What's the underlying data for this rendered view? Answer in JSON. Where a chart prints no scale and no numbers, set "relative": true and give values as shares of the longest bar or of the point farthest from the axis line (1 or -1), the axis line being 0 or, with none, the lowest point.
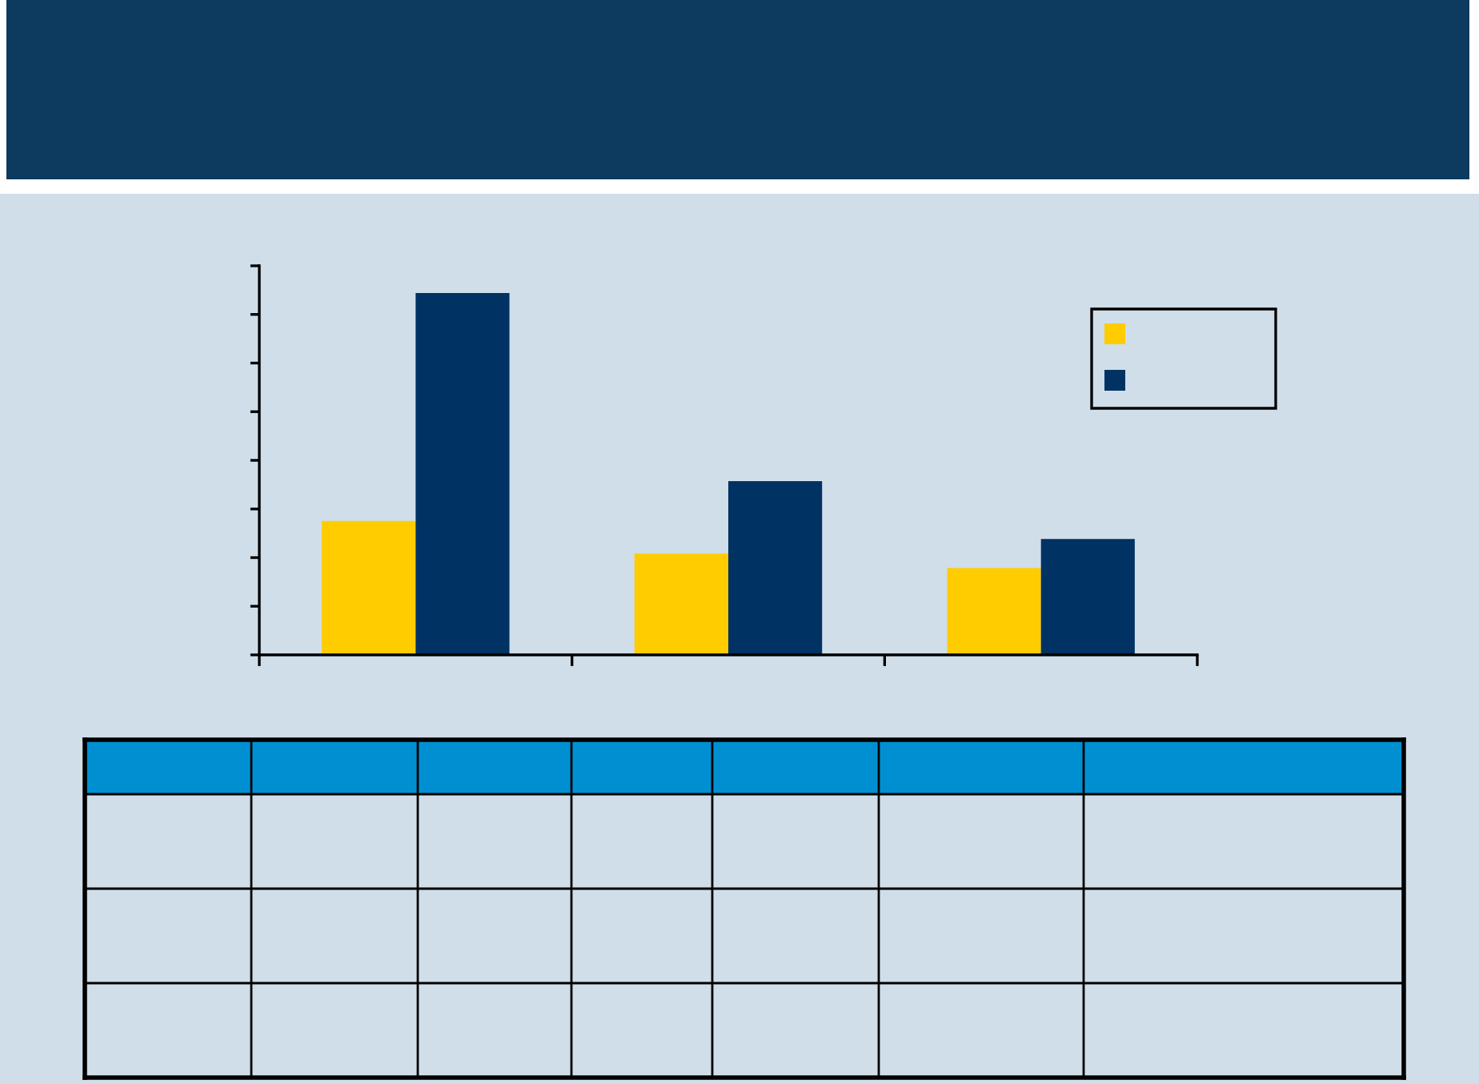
{
  "chart_data": {
    "type": "bar",
    "relative": true,
    "categories": [
      null,
      null,
      null
    ],
    "series": [
      {
        "color": "#ffcc00",
        "values": [
          0.37,
          0.28,
          0.24
        ]
      },
      {
        "color": "#003263",
        "values": [
          1,
          0.48,
          0.32
        ]
      }
    ]
  }
}
